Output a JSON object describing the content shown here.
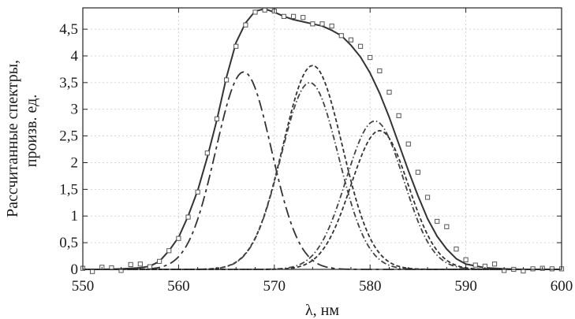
{
  "chart_data": {
    "type": "line",
    "title": "",
    "xlabel": "λ, нм",
    "ylabel_lines": [
      "Рассчитанные спектры,",
      "произв. ед."
    ],
    "xlim": [
      550,
      600
    ],
    "ylim": [
      0,
      4.9
    ],
    "grid": true,
    "x_ticks": [
      550,
      560,
      570,
      580,
      590,
      600
    ],
    "x_tick_labels": [
      "550",
      "560",
      "570",
      "580",
      "590",
      "600"
    ],
    "y_ticks": [
      0,
      0.5,
      1,
      1.5,
      2,
      2.5,
      3,
      3.5,
      4,
      4.5
    ],
    "y_tick_labels": [
      "0",
      "0,5",
      "1",
      "1,5",
      "2",
      "2,5",
      "3",
      "3,5",
      "4",
      "4,5"
    ],
    "series": [
      {
        "style": "solid",
        "color": "#333333",
        "x": [
          550,
          552,
          554,
          556,
          557,
          558,
          559,
          560,
          561,
          562,
          563,
          564,
          565,
          566,
          567,
          568,
          569,
          570,
          571,
          572,
          573,
          574,
          575,
          576,
          577,
          578,
          579,
          580,
          581,
          582,
          583,
          584,
          585,
          586,
          587,
          588,
          589,
          590,
          592,
          594,
          596,
          598,
          600
        ],
        "y": [
          0,
          0,
          0.01,
          0.03,
          0.06,
          0.15,
          0.35,
          0.6,
          1.0,
          1.48,
          2.1,
          2.8,
          3.6,
          4.25,
          4.62,
          4.84,
          4.88,
          4.82,
          4.74,
          4.68,
          4.64,
          4.6,
          4.56,
          4.48,
          4.38,
          4.2,
          3.98,
          3.68,
          3.3,
          2.85,
          2.35,
          1.85,
          1.38,
          0.95,
          0.62,
          0.38,
          0.2,
          0.1,
          0.03,
          0.01,
          0,
          0,
          0
        ]
      },
      {
        "style": "long-dash",
        "color": "#333333",
        "gaussian": {
          "amplitude": 3.7,
          "center": 566.8,
          "sigma": 2.9
        }
      },
      {
        "style": "dash",
        "color": "#333333",
        "gaussian": {
          "amplitude": 3.82,
          "center": 574.0,
          "sigma": 3.1
        }
      },
      {
        "style": "dash-dot",
        "color": "#444444",
        "gaussian": {
          "amplitude": 3.5,
          "center": 573.7,
          "sigma": 3.0
        }
      },
      {
        "style": "dash-dot",
        "color": "#444444",
        "gaussian": {
          "amplitude": 2.78,
          "center": 580.5,
          "sigma": 3.0
        }
      },
      {
        "style": "dash",
        "color": "#333333",
        "gaussian": {
          "amplitude": 2.6,
          "center": 581.0,
          "sigma": 3.0
        }
      },
      {
        "style": "markers",
        "marker": "square",
        "color": "#555555",
        "x": [
          550,
          551,
          552,
          553,
          554,
          555,
          556,
          557,
          558,
          559,
          560,
          561,
          562,
          563,
          564,
          565,
          566,
          567,
          568,
          569,
          570,
          571,
          572,
          573,
          574,
          575,
          576,
          577,
          578,
          579,
          580,
          581,
          582,
          583,
          584,
          585,
          586,
          587,
          588,
          589,
          590,
          591,
          592,
          593,
          594,
          595,
          596,
          597,
          598,
          599,
          600
        ],
        "y": [
          0.02,
          -0.04,
          0.04,
          0.03,
          -0.02,
          0.09,
          0.1,
          0.05,
          0.15,
          0.35,
          0.58,
          0.98,
          1.45,
          2.18,
          2.82,
          3.55,
          4.18,
          4.58,
          4.82,
          4.86,
          4.84,
          4.74,
          4.74,
          4.72,
          4.6,
          4.6,
          4.56,
          4.38,
          4.3,
          4.18,
          3.97,
          3.72,
          3.32,
          2.88,
          2.35,
          1.82,
          1.35,
          0.9,
          0.8,
          0.38,
          0.18,
          0.08,
          0.06,
          0.1,
          -0.02,
          0,
          -0.03,
          0.01,
          0.02,
          0.01,
          0.01
        ]
      }
    ]
  }
}
